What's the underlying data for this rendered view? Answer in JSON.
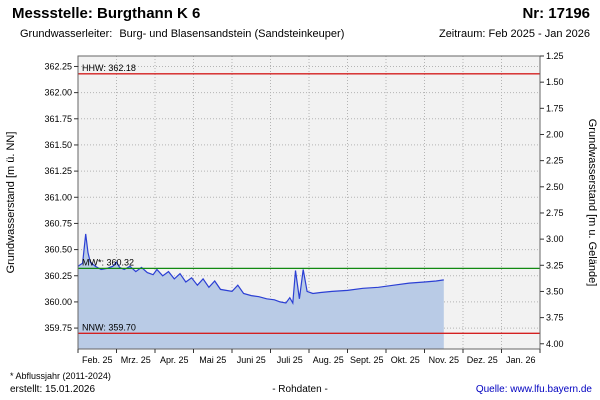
{
  "header": {
    "station_label": "Messstelle: Burgthann K 6",
    "number_label": "Nr: 17196",
    "aquifer_label": "Grundwasserleiter:",
    "aquifer": "Burg- und Blasensandstein (Sandsteinkeuper)",
    "period_label": "Zeitraum: Feb 2025 - Jan 2026"
  },
  "footer": {
    "footnote": "* Abflussjahr (2011-2024)",
    "created": "erstellt: 15.01.2026",
    "center": "- Rohdaten -",
    "source_label": "Quelle:",
    "source_link": "www.lfu.bayern.de"
  },
  "chart_data": {
    "type": "area",
    "title": "Messstelle: Burgthann K 6",
    "colors": {
      "plot_bg": "#f2f2f2",
      "grid": "#b4b4b4",
      "axis": "#333333"
    },
    "x_axis": {
      "labels": [
        "Feb. 25",
        "Mrz. 25",
        "Apr. 25",
        "Mai 25",
        "Juni 25",
        "Juli 25",
        "Aug. 25",
        "Sept. 25",
        "Okt. 25",
        "Nov. 25",
        "Dez. 25",
        "Jan. 26"
      ],
      "range_months": [
        0,
        12
      ]
    },
    "y_left": {
      "title": "Grundwasserstand [m ü. NN]",
      "min": 359.55,
      "max": 362.35,
      "ticks": [
        359.75,
        360.0,
        360.25,
        360.5,
        360.75,
        361.0,
        361.25,
        361.5,
        361.75,
        362.0,
        362.25
      ]
    },
    "y_right": {
      "title": "Grundwasserstand [m u. Gelände]",
      "ground_level_m_nn": 363.6,
      "ticks": [
        1.25,
        1.5,
        1.75,
        2.0,
        2.25,
        2.5,
        2.75,
        3.0,
        3.25,
        3.5,
        3.75,
        4.0
      ]
    },
    "ref_lines": [
      {
        "name": "HHW",
        "label": "HHW: 362.18",
        "value": 362.18,
        "color": "#d42020"
      },
      {
        "name": "MW",
        "label": "MW*: 360.32",
        "value": 360.32,
        "color": "#128a12"
      },
      {
        "name": "NNW",
        "label": "NNW: 359.70",
        "value": 359.7,
        "color": "#d42020"
      }
    ],
    "series": [
      {
        "name": "Rohdaten",
        "color": "#2b3fd4",
        "fill": "#b9cbe6",
        "points": [
          [
            0.0,
            360.34
          ],
          [
            0.12,
            360.37
          ],
          [
            0.2,
            360.65
          ],
          [
            0.26,
            360.47
          ],
          [
            0.32,
            360.38
          ],
          [
            0.45,
            360.34
          ],
          [
            0.6,
            360.31
          ],
          [
            0.75,
            360.32
          ],
          [
            0.9,
            360.34
          ],
          [
            1.0,
            360.38
          ],
          [
            1.08,
            360.33
          ],
          [
            1.2,
            360.31
          ],
          [
            1.35,
            360.34
          ],
          [
            1.5,
            360.29
          ],
          [
            1.65,
            360.33
          ],
          [
            1.8,
            360.28
          ],
          [
            1.95,
            360.26
          ],
          [
            2.05,
            360.31
          ],
          [
            2.2,
            360.25
          ],
          [
            2.35,
            360.29
          ],
          [
            2.5,
            360.22
          ],
          [
            2.65,
            360.27
          ],
          [
            2.8,
            360.19
          ],
          [
            2.95,
            360.23
          ],
          [
            3.1,
            360.16
          ],
          [
            3.25,
            360.22
          ],
          [
            3.4,
            360.14
          ],
          [
            3.55,
            360.2
          ],
          [
            3.7,
            360.12
          ],
          [
            3.85,
            360.11
          ],
          [
            4.0,
            360.1
          ],
          [
            4.15,
            360.16
          ],
          [
            4.3,
            360.08
          ],
          [
            4.5,
            360.06
          ],
          [
            4.7,
            360.05
          ],
          [
            4.9,
            360.03
          ],
          [
            5.1,
            360.02
          ],
          [
            5.25,
            360.0
          ],
          [
            5.4,
            359.99
          ],
          [
            5.5,
            360.04
          ],
          [
            5.58,
            359.99
          ],
          [
            5.65,
            360.3
          ],
          [
            5.75,
            360.03
          ],
          [
            5.85,
            360.31
          ],
          [
            5.95,
            360.1
          ],
          [
            6.1,
            360.08
          ],
          [
            6.3,
            360.09
          ],
          [
            6.6,
            360.1
          ],
          [
            7.0,
            360.11
          ],
          [
            7.4,
            360.13
          ],
          [
            7.8,
            360.14
          ],
          [
            8.2,
            360.16
          ],
          [
            8.6,
            360.18
          ],
          [
            9.0,
            360.19
          ],
          [
            9.3,
            360.2
          ],
          [
            9.5,
            360.21
          ]
        ]
      }
    ]
  }
}
